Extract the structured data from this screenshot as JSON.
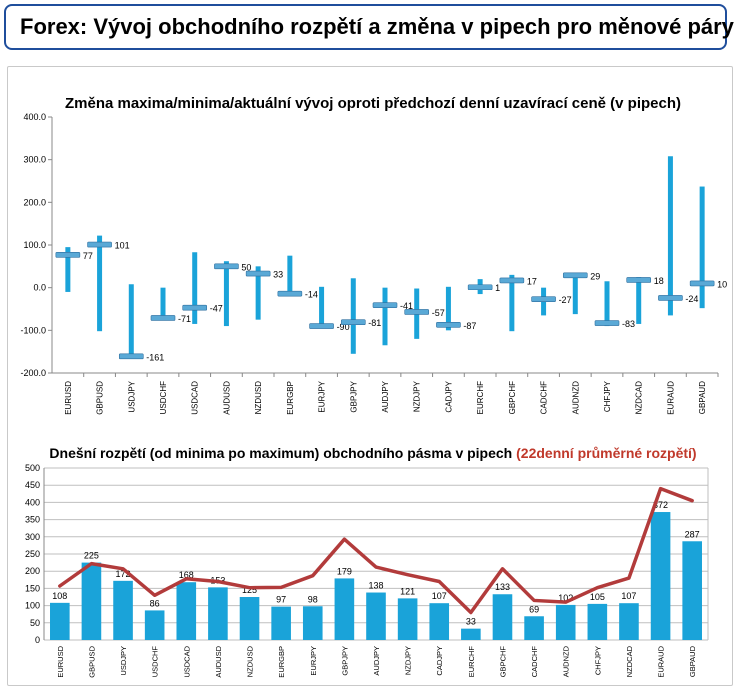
{
  "header": {
    "title": "Forex: Vývoj obchodního rozpětí a změna v pipech pro měnové páry"
  },
  "colors": {
    "bar": "#1aa3d9",
    "marker": "#5aa9d6",
    "avg_line": "#b23b3b",
    "accent_red": "#c0392b",
    "border": "#1f4e9c"
  },
  "chart_data": [
    {
      "type": "bar",
      "title": "Změna maxima/minima/aktuální vývoj oproti předchozí denní uzavírací ceně (v pipech)",
      "ylim": [
        -200,
        400
      ],
      "yticks": [
        "-200.0",
        "-100.0",
        "0.0",
        "100.0",
        "200.0",
        "300.0",
        "400.0"
      ],
      "ytick_values": [
        -200,
        -100,
        0,
        100,
        200,
        300,
        400
      ],
      "grid": false,
      "categories": [
        "EURUSD",
        "GBPUSD",
        "USDJPY",
        "USDCHF",
        "USDCAD",
        "AUDUSD",
        "NZDUSD",
        "EURGBP",
        "EURJPY",
        "GBPJPY",
        "AUDJPY",
        "NZDJPY",
        "CADJPY",
        "EURCHF",
        "GBPCHF",
        "CADCHF",
        "AUDNZD",
        "CHFJPY",
        "NZDCAD",
        "EURAUD",
        "GBPAUD"
      ],
      "high": [
        95,
        122,
        8,
        0,
        83,
        62,
        50,
        75,
        2,
        22,
        0,
        -2,
        2,
        20,
        30,
        0,
        35,
        15,
        25,
        308,
        237
      ],
      "low": [
        -10,
        -102,
        -165,
        -75,
        -85,
        -90,
        -75,
        -15,
        -95,
        -155,
        -135,
        -120,
        -100,
        -15,
        -102,
        -65,
        -62,
        -90,
        -85,
        -65,
        -48
      ],
      "current": [
        77,
        101,
        -161,
        -71,
        -47,
        50,
        33,
        -14,
        -90,
        -81,
        -41,
        -57,
        -87,
        1,
        17,
        -27,
        29,
        -83,
        18,
        -24,
        10
      ],
      "labels": [
        "77",
        "101",
        "-161",
        "-71",
        "-47",
        "50",
        "33",
        "-14",
        "-90",
        "-81",
        "-41",
        "-57",
        "-87",
        "1",
        "17",
        "-27",
        "29",
        "-83",
        "18",
        "-24",
        "10"
      ]
    },
    {
      "type": "bar",
      "title_main": "Dnešní rozpětí (od minima po maximum) obchodního pásma v pipech ",
      "title_red": "(22denní průměrné rozpětí)",
      "ylim": [
        0,
        500
      ],
      "yticks": [
        "0",
        "50",
        "100",
        "150",
        "200",
        "250",
        "300",
        "350",
        "400",
        "450",
        "500"
      ],
      "ytick_values": [
        0,
        50,
        100,
        150,
        200,
        250,
        300,
        350,
        400,
        450,
        500
      ],
      "grid": true,
      "categories": [
        "EURUSD",
        "GBPUSD",
        "USDJPY",
        "USDCHF",
        "USDCAD",
        "AUDUSD",
        "NZDUSD",
        "EURGBP",
        "EURJPY",
        "GBPJPY",
        "AUDJPY",
        "NZDJPY",
        "CADJPY",
        "EURCHF",
        "GBPCHF",
        "CADCHF",
        "AUDNZD",
        "CHFJPY",
        "NZDCAD",
        "EURAUD",
        "GBPAUD"
      ],
      "series": [
        {
          "type": "bar",
          "values": [
            108,
            225,
            172,
            86,
            168,
            153,
            125,
            97,
            98,
            179,
            138,
            121,
            107,
            33,
            133,
            69,
            102,
            105,
            107,
            372,
            287
          ]
        },
        {
          "type": "line",
          "values": [
            157,
            222,
            207,
            130,
            178,
            170,
            152,
            153,
            187,
            293,
            212,
            190,
            170,
            80,
            207,
            115,
            110,
            152,
            180,
            440,
            405
          ]
        }
      ]
    }
  ]
}
